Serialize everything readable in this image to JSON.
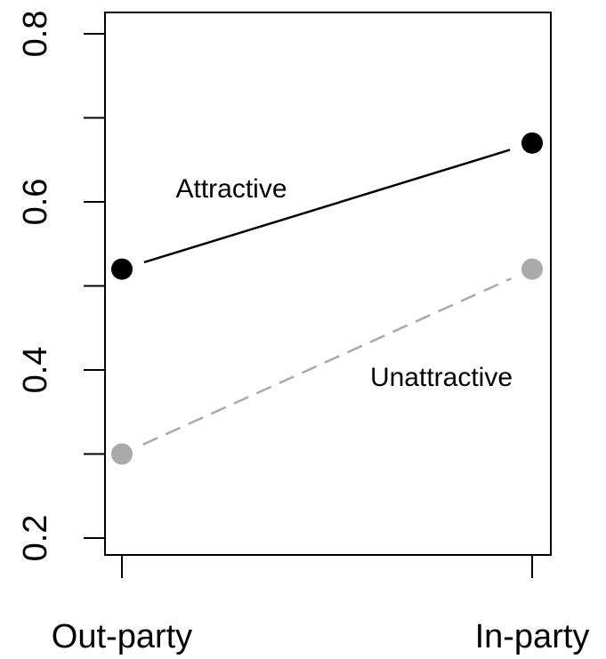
{
  "chart_data": {
    "type": "line",
    "title": "",
    "xlabel": "",
    "ylabel": "",
    "categories": [
      "Out-party",
      "In-party"
    ],
    "ylim": [
      0.2,
      0.8
    ],
    "y_ticks": [
      0.2,
      0.4,
      0.6,
      0.8
    ],
    "y_tick_labels": [
      "0.2",
      "0.4",
      "0.6",
      "0.8"
    ],
    "grid": false,
    "series": [
      {
        "name": "Attractive",
        "values": [
          0.52,
          0.67
        ],
        "color": "#000000",
        "line_style": "solid"
      },
      {
        "name": "Unattractive",
        "values": [
          0.3,
          0.52
        ],
        "color": "#aaaaaa",
        "line_style": "dashed"
      }
    ]
  }
}
